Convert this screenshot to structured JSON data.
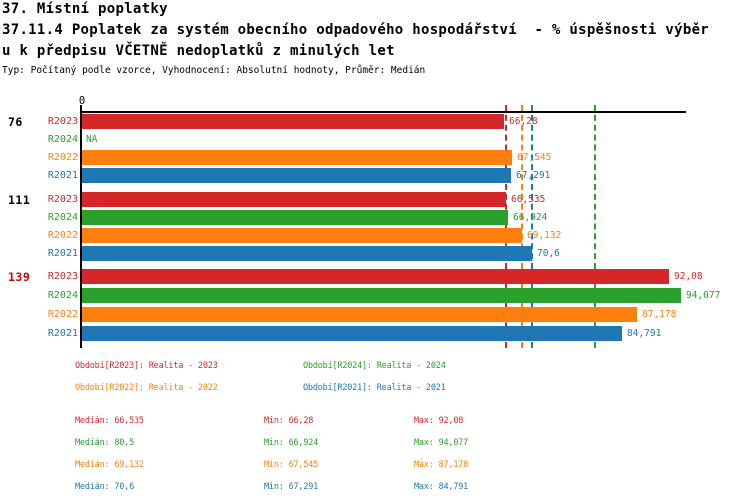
{
  "header": {
    "title": "37. Místní poplatky",
    "subtitle_line1": "37.11.4 Poplatek za systém obecního odpadového hospodářství  - % úspěšnosti výběr",
    "subtitle_line2": "u k předpisu VČETNĚ nedoplatků z minulých let",
    "meta": "Typ: Počítaný podle vzorce, Vyhodnocení: Absolutní hodnoty, Průměr: Medián"
  },
  "colors": {
    "R2023": "#d62728",
    "R2024": "#2ca02c",
    "R2022": "#ff7f0e",
    "R2021": "#1f77b4",
    "highlight_label": "#e00000",
    "axis": "#000000",
    "text": "#000000"
  },
  "chart_data": {
    "type": "bar",
    "orientation": "horizontal",
    "axis": {
      "min": 0,
      "max": 95,
      "tick_label": "0",
      "grid": false
    },
    "series_order": [
      "R2023",
      "R2024",
      "R2022",
      "R2021"
    ],
    "groups": [
      {
        "label": "76",
        "highlighted": false,
        "bars": [
          {
            "series": "R2023",
            "value": 66.28,
            "display": "66,28"
          },
          {
            "series": "R2024",
            "value": null,
            "display": "NA"
          },
          {
            "series": "R2022",
            "value": 67.545,
            "display": "67,545"
          },
          {
            "series": "R2021",
            "value": 67.291,
            "display": "67,291"
          }
        ]
      },
      {
        "label": "111",
        "highlighted": false,
        "bars": [
          {
            "series": "R2023",
            "value": 66.535,
            "display": "66,535"
          },
          {
            "series": "R2024",
            "value": 66.924,
            "display": "66,924"
          },
          {
            "series": "R2022",
            "value": 69.132,
            "display": "69,132"
          },
          {
            "series": "R2021",
            "value": 70.6,
            "display": "70,6"
          }
        ]
      },
      {
        "label": "139",
        "highlighted": true,
        "bars": [
          {
            "series": "R2023",
            "value": 92.08,
            "display": "92,08"
          },
          {
            "series": "R2024",
            "value": 94.077,
            "display": "94,077"
          },
          {
            "series": "R2022",
            "value": 87.178,
            "display": "87,178"
          },
          {
            "series": "R2021",
            "value": 84.791,
            "display": "84,791"
          }
        ]
      }
    ],
    "median_lines": [
      {
        "series": "R2023",
        "value": 66.535
      },
      {
        "series": "R2022",
        "value": 69.132
      },
      {
        "series": "R2021",
        "value": 70.6
      },
      {
        "series": "R2024",
        "value": 80.5
      }
    ]
  },
  "legend": {
    "items": [
      {
        "series": "R2023",
        "label": "Období[R2023]: Realita - 2023"
      },
      {
        "series": "R2024",
        "label": "Období[R2024]: Realita - 2024"
      },
      {
        "series": "R2022",
        "label": "Období[R2022]: Realita - 2022"
      },
      {
        "series": "R2021",
        "label": "Období[R2021]: Realita - 2021"
      }
    ]
  },
  "stats": {
    "rows": [
      {
        "series": "R2023",
        "median": "Medián: 66,535",
        "min": "Min: 66,28",
        "max": "Max: 92,08"
      },
      {
        "series": "R2024",
        "median": "Medián: 80,5",
        "min": "Min: 66,924",
        "max": "Max: 94,077"
      },
      {
        "series": "R2022",
        "median": "Medián: 69,132",
        "min": "Min: 67,545",
        "max": "Max: 87,178"
      },
      {
        "series": "R2021",
        "median": "Medián: 70,6",
        "min": "Min: 67,291",
        "max": "Max: 84,791"
      }
    ]
  }
}
